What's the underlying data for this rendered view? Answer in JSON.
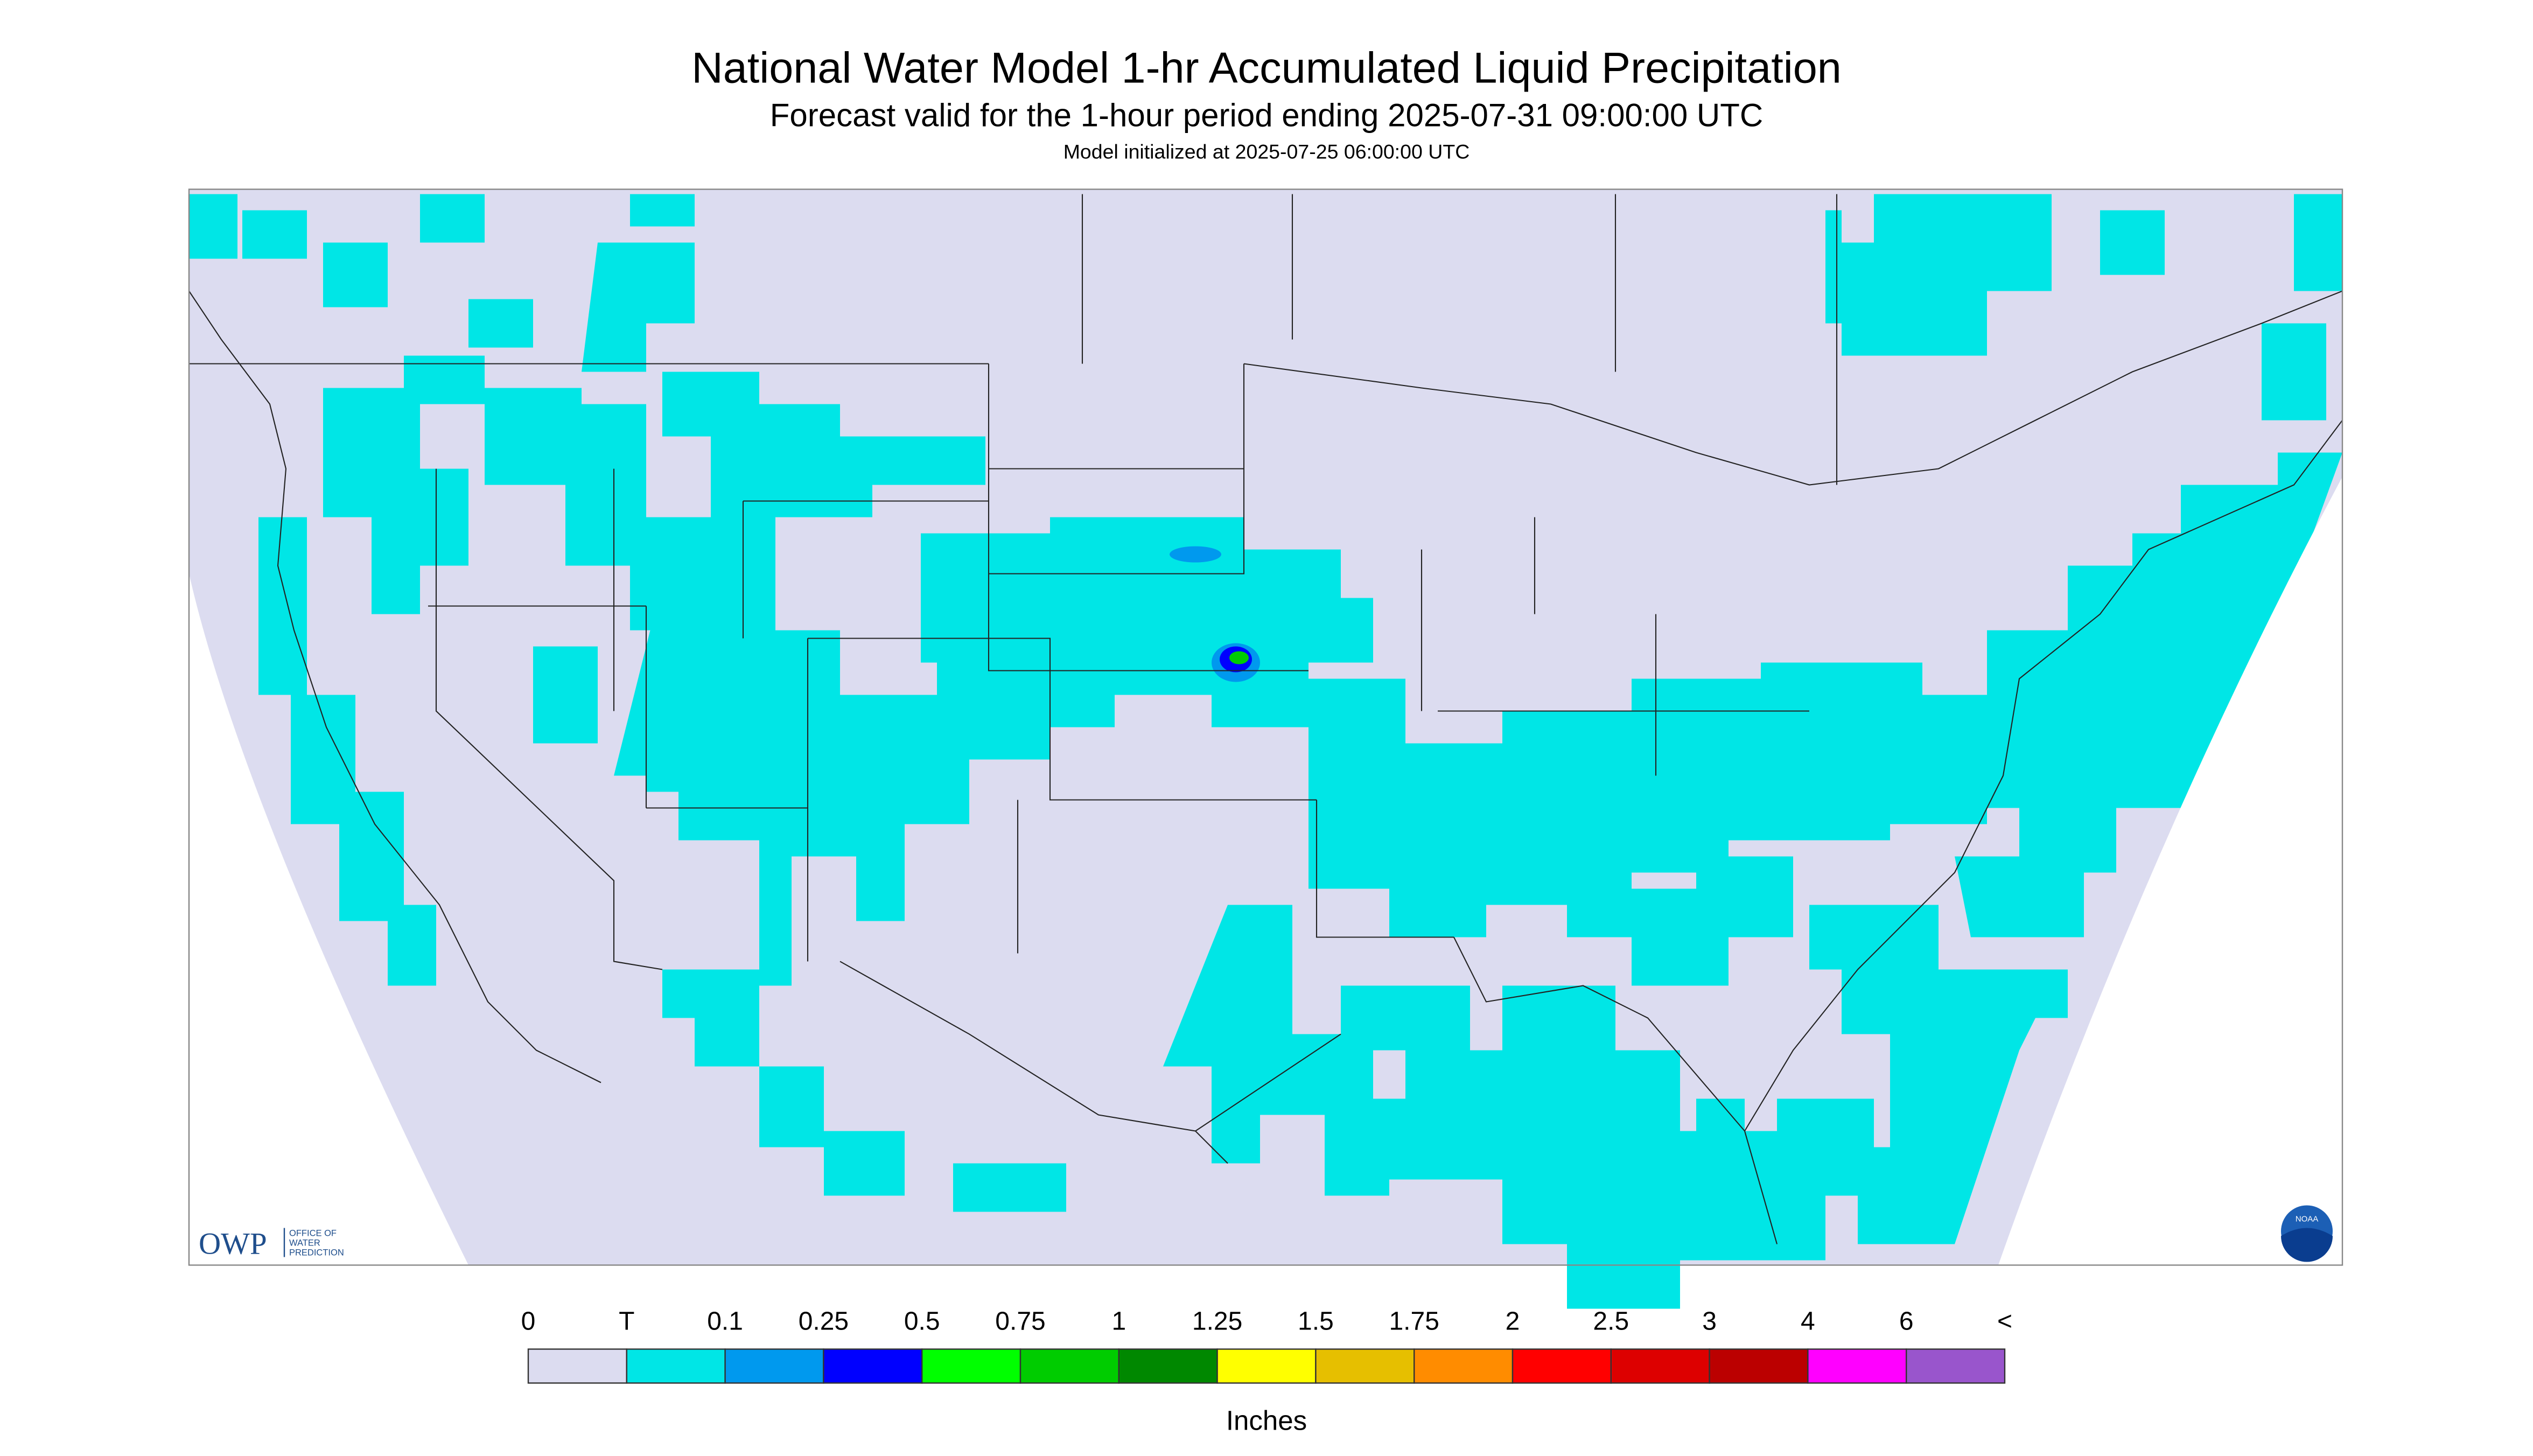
{
  "header": {
    "title": "National Water Model 1-hr Accumulated Liquid Precipitation",
    "subtitle": "Forecast valid for the 1-hour period ending 2025-07-31 09:00:00 UTC",
    "initialized": "Model initialized at 2025-07-25 06:00:00 UTC"
  },
  "logo": {
    "abbr": "OWP",
    "line1": "OFFICE OF",
    "line2": "WATER",
    "line3": "PREDICTION",
    "noaa": "NOAA"
  },
  "legend": {
    "labels": [
      0,
      "T",
      0.1,
      0.25,
      0.5,
      0.75,
      1,
      1.25,
      1.5,
      1.75,
      2,
      2.5,
      3,
      4,
      6,
      "<"
    ],
    "colors": [
      "#dcdcf0",
      "#00e6e6",
      "#0099ee",
      "#0000ff",
      "#00ff00",
      "#00cc00",
      "#008800",
      "#ffff00",
      "#e6bf00",
      "#ff8c00",
      "#ff0000",
      "#dd0000",
      "#bb0000",
      "#ff00ff",
      "#9955cc"
    ],
    "unit": "Inches"
  }
}
